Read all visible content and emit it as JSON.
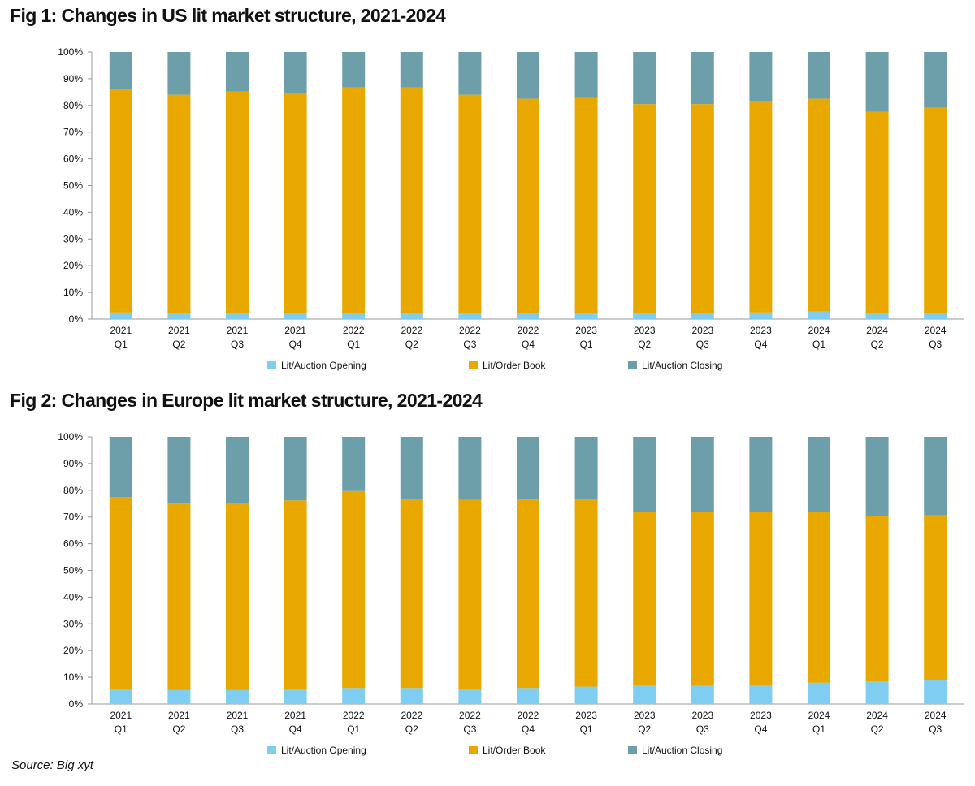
{
  "figures": [
    {
      "title": "Fig 1: Changes in US lit market structure, 2021-2024"
    },
    {
      "title": "Fig 2: Changes in Europe lit market structure, 2021-2024"
    }
  ],
  "source": "Source: Big xyt",
  "colors": {
    "opening": "#7fcdf0",
    "order_book": "#e8a800",
    "closing": "#6d9faa",
    "axis": "#9a9a9a"
  },
  "chart_data": [
    {
      "type": "bar",
      "stacked": true,
      "percent": true,
      "title": "Fig 1: Changes in US lit market structure, 2021-2024",
      "categories": [
        [
          "2021",
          "Q1"
        ],
        [
          "2021",
          "Q2"
        ],
        [
          "2021",
          "Q3"
        ],
        [
          "2021",
          "Q4"
        ],
        [
          "2022",
          "Q1"
        ],
        [
          "2022",
          "Q2"
        ],
        [
          "2022",
          "Q3"
        ],
        [
          "2022",
          "Q4"
        ],
        [
          "2023",
          "Q1"
        ],
        [
          "2023",
          "Q2"
        ],
        [
          "2023",
          "Q3"
        ],
        [
          "2023",
          "Q4"
        ],
        [
          "2024",
          "Q1"
        ],
        [
          "2024",
          "Q2"
        ],
        [
          "2024",
          "Q3"
        ]
      ],
      "y_ticks": [
        "0%",
        "10%",
        "20%",
        "30%",
        "40%",
        "50%",
        "60%",
        "70%",
        "80%",
        "90%",
        "100%"
      ],
      "ylim": [
        0,
        100
      ],
      "legend_position": "bottom",
      "series": [
        {
          "name": "Lit/Auction Opening",
          "values": [
            2.5,
            2.2,
            2.2,
            2.2,
            2.2,
            2.2,
            2.2,
            2.2,
            2.2,
            2.2,
            2.2,
            2.5,
            2.8,
            2.2,
            2.2
          ]
        },
        {
          "name": "Lit/Order Book",
          "values": [
            83.5,
            81.8,
            83.0,
            82.3,
            84.5,
            84.5,
            81.8,
            80.3,
            80.6,
            78.3,
            78.3,
            79.0,
            79.7,
            75.4,
            77.0
          ]
        },
        {
          "name": "Lit/Auction Closing",
          "values": [
            14.0,
            16.0,
            14.8,
            15.5,
            13.3,
            13.3,
            16.0,
            17.5,
            17.2,
            19.5,
            19.5,
            18.5,
            17.5,
            22.4,
            20.8
          ]
        }
      ]
    },
    {
      "type": "bar",
      "stacked": true,
      "percent": true,
      "title": "Fig 2: Changes in Europe lit market structure, 2021-2024",
      "categories": [
        [
          "2021",
          "Q1"
        ],
        [
          "2021",
          "Q2"
        ],
        [
          "2021",
          "Q3"
        ],
        [
          "2021",
          "Q4"
        ],
        [
          "2022",
          "Q1"
        ],
        [
          "2022",
          "Q2"
        ],
        [
          "2022",
          "Q3"
        ],
        [
          "2022",
          "Q4"
        ],
        [
          "2023",
          "Q1"
        ],
        [
          "2023",
          "Q2"
        ],
        [
          "2023",
          "Q3"
        ],
        [
          "2023",
          "Q4"
        ],
        [
          "2024",
          "Q1"
        ],
        [
          "2024",
          "Q2"
        ],
        [
          "2024",
          "Q3"
        ]
      ],
      "y_ticks": [
        "0%",
        "10%",
        "20%",
        "30%",
        "40%",
        "50%",
        "60%",
        "70%",
        "80%",
        "90%",
        "100%"
      ],
      "ylim": [
        0,
        100
      ],
      "legend_position": "bottom",
      "series": [
        {
          "name": "Lit/Auction Opening",
          "values": [
            5.5,
            5.2,
            5.2,
            5.5,
            6.0,
            6.0,
            5.5,
            6.0,
            6.5,
            7.0,
            6.8,
            7.0,
            8.0,
            8.5,
            9.0
          ]
        },
        {
          "name": "Lit/Order Book",
          "values": [
            72.0,
            69.8,
            70.0,
            70.7,
            73.7,
            70.7,
            70.9,
            70.5,
            70.2,
            65.0,
            65.2,
            65.0,
            64.0,
            61.8,
            61.6
          ]
        },
        {
          "name": "Lit/Auction Closing",
          "values": [
            22.5,
            25.0,
            24.8,
            23.8,
            20.3,
            23.3,
            23.6,
            23.5,
            23.3,
            28.0,
            28.0,
            28.0,
            28.0,
            29.7,
            29.4
          ]
        }
      ]
    }
  ]
}
